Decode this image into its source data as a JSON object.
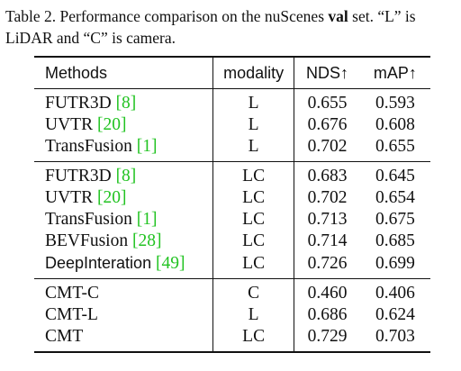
{
  "caption": {
    "part1": "Table 2. Performance comparison on the nuScenes ",
    "bold": "val",
    "part2": " set. “L” is LiDAR and “C” is camera."
  },
  "header": {
    "methods": "Methods",
    "modality": "modality",
    "nds": "NDS↑",
    "map": "mAP↑"
  },
  "groups": [
    [
      {
        "name": "FUTR3D",
        "ref": "[8]",
        "modality": "L",
        "nds": "0.655",
        "map": "0.593"
      },
      {
        "name": "UVTR",
        "ref": "[20]",
        "modality": "L",
        "nds": "0.676",
        "map": "0.608"
      },
      {
        "name": "TransFusion",
        "ref": "[1]",
        "modality": "L",
        "nds": "0.702",
        "map": "0.655"
      }
    ],
    [
      {
        "name": "FUTR3D",
        "ref": "[8]",
        "modality": "LC",
        "nds": "0.683",
        "map": "0.645"
      },
      {
        "name": "UVTR",
        "ref": "[20]",
        "modality": "LC",
        "nds": "0.702",
        "map": "0.654"
      },
      {
        "name": "TransFusion",
        "ref": "[1]",
        "modality": "LC",
        "nds": "0.713",
        "map": "0.675"
      },
      {
        "name": "BEVFusion",
        "ref": "[28]",
        "modality": "LC",
        "nds": "0.714",
        "map": "0.685"
      },
      {
        "name": "DeepInteration",
        "ref": "[49]",
        "modality": "LC",
        "nds": "0.726",
        "map": "0.699"
      }
    ],
    [
      {
        "name": "CMT-C",
        "ref": "",
        "modality": "C",
        "nds": "0.460",
        "map": "0.406"
      },
      {
        "name": "CMT-L",
        "ref": "",
        "modality": "L",
        "nds": "0.686",
        "map": "0.624"
      },
      {
        "name": "CMT",
        "ref": "",
        "modality": "LC",
        "nds": "0.729",
        "map": "0.703"
      }
    ]
  ]
}
